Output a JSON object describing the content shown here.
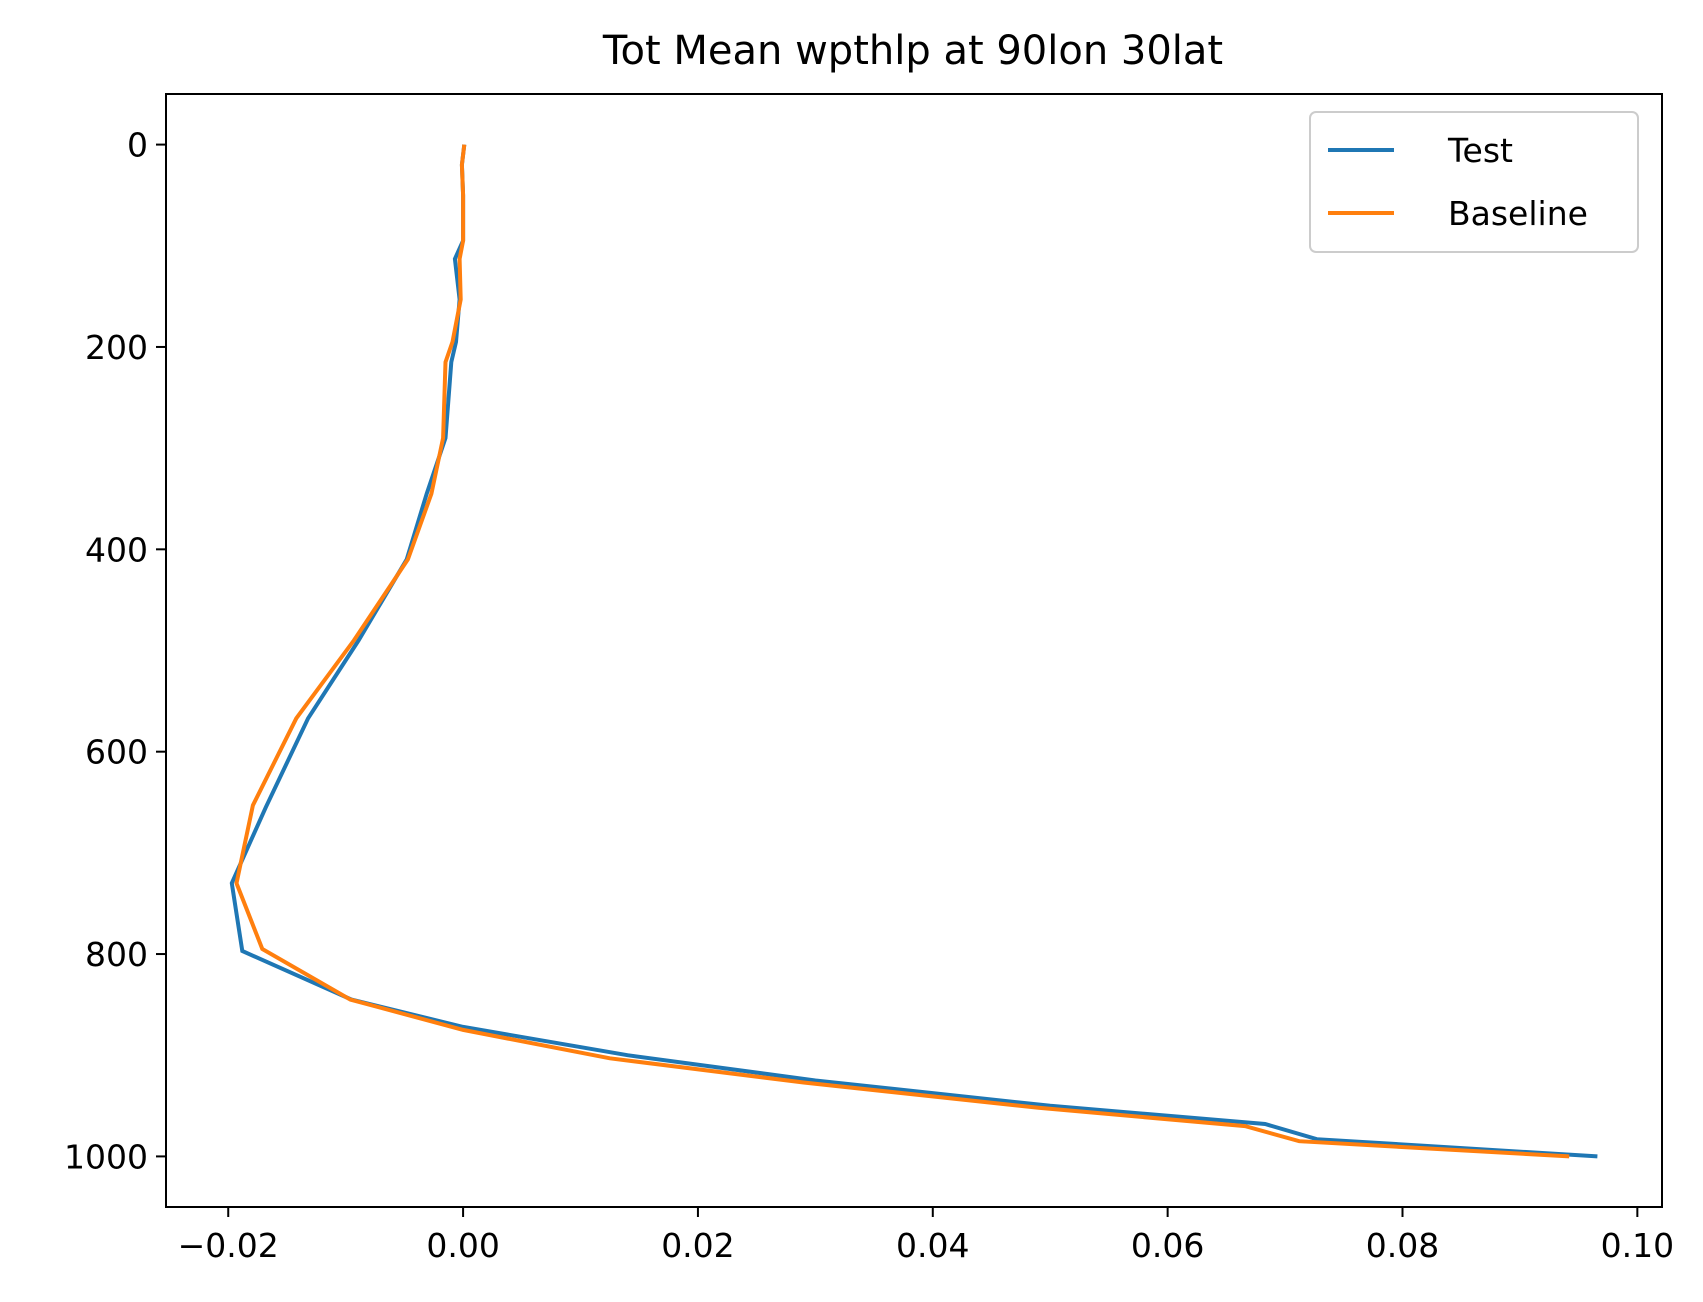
{
  "chart_data": {
    "type": "line",
    "title": "Tot Mean wpthlp at 90lon 30lat",
    "xlabel": "",
    "ylabel": "",
    "xlim": [
      -0.0253,
      0.1021
    ],
    "ylim": [
      1050,
      -50
    ],
    "y_inverted": true,
    "grid": false,
    "legend_position": "top-right",
    "xticks": [
      -0.02,
      0.0,
      0.02,
      0.04,
      0.06,
      0.08,
      0.1
    ],
    "xtick_labels": [
      "−0.02",
      "0.00",
      "0.02",
      "0.04",
      "0.06",
      "0.08",
      "0.10"
    ],
    "yticks": [
      0,
      200,
      400,
      600,
      800,
      1000
    ],
    "ytick_labels": [
      "0",
      "200",
      "400",
      "600",
      "800",
      "1000"
    ],
    "series": [
      {
        "name": "Test",
        "color": "#1f77b4",
        "points": [
          [
            0.0001,
            0
          ],
          [
            -0.0001,
            20
          ],
          [
            0.0,
            50
          ],
          [
            0.0,
            95
          ],
          [
            -0.0007,
            113
          ],
          [
            -0.0003,
            153
          ],
          [
            -0.0006,
            195
          ],
          [
            -0.001,
            215
          ],
          [
            -0.0015,
            290
          ],
          [
            -0.0031,
            345
          ],
          [
            -0.0048,
            410
          ],
          [
            -0.0089,
            490
          ],
          [
            -0.0132,
            567
          ],
          [
            -0.0168,
            655
          ],
          [
            -0.0197,
            730
          ],
          [
            -0.0188,
            797
          ],
          [
            -0.0095,
            845
          ],
          [
            0.0,
            872
          ],
          [
            0.014,
            900
          ],
          [
            0.03,
            925
          ],
          [
            0.05,
            950
          ],
          [
            0.0683,
            968
          ],
          [
            0.0727,
            983
          ],
          [
            0.0966,
            1000
          ]
        ]
      },
      {
        "name": "Baseline",
        "color": "#ff7f0e",
        "points": [
          [
            0.0001,
            0
          ],
          [
            -0.0001,
            20
          ],
          [
            0.0,
            50
          ],
          [
            0.0,
            95
          ],
          [
            -0.0003,
            113
          ],
          [
            -0.0002,
            153
          ],
          [
            -0.0009,
            195
          ],
          [
            -0.0015,
            215
          ],
          [
            -0.0017,
            290
          ],
          [
            -0.0027,
            345
          ],
          [
            -0.0047,
            410
          ],
          [
            -0.0093,
            490
          ],
          [
            -0.0142,
            567
          ],
          [
            -0.0179,
            653
          ],
          [
            -0.0193,
            730
          ],
          [
            -0.0171,
            795
          ],
          [
            -0.0096,
            845
          ],
          [
            0.0,
            875
          ],
          [
            0.0125,
            903
          ],
          [
            0.029,
            927
          ],
          [
            0.049,
            952
          ],
          [
            0.0666,
            970
          ],
          [
            0.0712,
            985
          ],
          [
            0.0942,
            1000
          ]
        ]
      }
    ]
  }
}
